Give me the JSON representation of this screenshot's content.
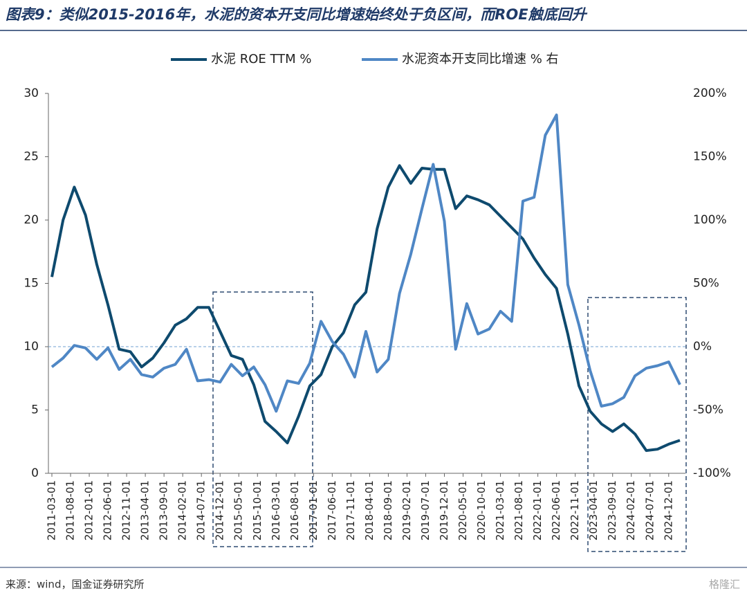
{
  "chart_data": {
    "type": "line",
    "title": "图表9：类似2015-2016年，水泥的资本开支同比增速始终处于负区间，而ROE触底回升",
    "source": "来源：wind，国金证券研究所",
    "watermark": "格隆汇",
    "x": [
      "2011-03-01",
      "2011-06-01",
      "2011-09-01",
      "2011-12-01",
      "2012-03-01",
      "2012-06-01",
      "2012-09-01",
      "2012-12-01",
      "2013-03-01",
      "2013-06-01",
      "2013-09-01",
      "2013-12-01",
      "2014-03-01",
      "2014-06-01",
      "2014-09-01",
      "2014-12-01",
      "2015-03-01",
      "2015-06-01",
      "2015-09-01",
      "2015-12-01",
      "2016-03-01",
      "2016-06-01",
      "2016-09-01",
      "2016-12-01",
      "2017-03-01",
      "2017-06-01",
      "2017-09-01",
      "2017-12-01",
      "2018-03-01",
      "2018-06-01",
      "2018-09-01",
      "2018-12-01",
      "2019-03-01",
      "2019-06-01",
      "2019-09-01",
      "2019-12-01",
      "2020-03-01",
      "2020-06-01",
      "2020-09-01",
      "2020-12-01",
      "2021-03-01",
      "2021-06-01",
      "2021-09-01",
      "2021-12-01",
      "2022-03-01",
      "2022-06-01",
      "2022-09-01",
      "2022-12-01",
      "2023-03-01",
      "2023-06-01",
      "2023-09-01",
      "2023-12-01",
      "2024-03-01",
      "2024-06-01",
      "2024-09-01",
      "2024-12-01",
      "2025-03-01"
    ],
    "xticks": [
      "2011-03-01",
      "2011-08-01",
      "2012-01-01",
      "2012-06-01",
      "2012-11-01",
      "2013-04-01",
      "2013-09-01",
      "2014-02-01",
      "2014-07-01",
      "2014-12-01",
      "2015-05-01",
      "2015-10-01",
      "2016-03-01",
      "2016-08-01",
      "2017-01-01",
      "2017-06-01",
      "2017-11-01",
      "2018-04-01",
      "2018-09-01",
      "2019-02-01",
      "2019-07-01",
      "2019-12-01",
      "2020-05-01",
      "2020-10-01",
      "2021-03-01",
      "2021-08-01",
      "2022-01-01",
      "2022-06-01",
      "2022-11-01",
      "2023-04-01",
      "2023-09-01",
      "2024-02-01",
      "2024-07-01",
      "2024-12-01"
    ],
    "series": [
      {
        "name": "水泥 ROE TTM %",
        "color": "#0e4a6e",
        "axis": "y",
        "values": [
          15.5,
          20,
          22.6,
          20.4,
          16.5,
          13.3,
          9.8,
          9.6,
          8.4,
          9.1,
          10.3,
          11.7,
          12.2,
          13.1,
          13.1,
          11.2,
          9.3,
          9.0,
          7.0,
          4.1,
          3.3,
          2.4,
          4.5,
          6.9,
          7.8,
          10.0,
          11.1,
          13.3,
          14.3,
          19.3,
          22.6,
          24.3,
          22.9,
          24.1,
          24.0,
          24.0,
          20.9,
          21.9,
          21.6,
          21.2,
          20.3,
          19.4,
          18.5,
          17.0,
          15.7,
          14.6,
          11.0,
          6.9,
          4.9,
          3.9,
          3.3,
          3.9,
          3.1,
          1.8,
          1.9,
          2.3,
          2.6
        ]
      },
      {
        "name": "水泥资本开支同比增速 % 右",
        "color": "#4f87c5",
        "axis": "y2",
        "values": [
          -16,
          -9,
          1,
          -1,
          -10,
          -1,
          -18,
          -10,
          -22,
          -24,
          -17,
          -14,
          -2,
          -27,
          -26,
          -28,
          -14,
          -23,
          -16,
          -30,
          -51,
          -27,
          -29,
          -13,
          20,
          4,
          -6,
          -24,
          12,
          -20,
          -10,
          42,
          73,
          109,
          144,
          99,
          -2,
          34,
          10,
          14,
          28,
          20,
          115,
          118,
          167,
          183,
          49,
          17,
          -19,
          -47,
          -45,
          -40,
          -23,
          -17,
          -15,
          -12,
          -30
        ]
      }
    ],
    "ylim": [
      0,
      30
    ],
    "yticks": [
      0,
      5,
      10,
      15,
      20,
      25,
      30
    ],
    "y2lim": [
      -100,
      200
    ],
    "y2ticks": [
      {
        "value": -100,
        "label": "-100%"
      },
      {
        "value": -50,
        "label": "-50%"
      },
      {
        "value": 0,
        "label": "0%"
      },
      {
        "value": 50,
        "label": "50%"
      },
      {
        "value": 100,
        "label": "100%"
      },
      {
        "value": 150,
        "label": "150%"
      },
      {
        "value": 200,
        "label": "200%"
      }
    ],
    "reference_line": {
      "axis": "y2",
      "value": 0,
      "color": "#6fa0d0"
    },
    "legend": "top"
  }
}
